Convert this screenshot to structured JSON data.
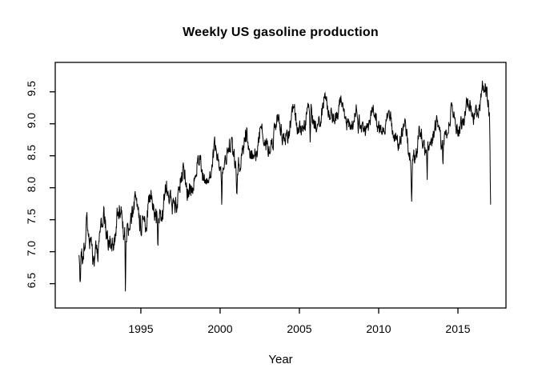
{
  "chart_data": {
    "type": "line",
    "title": "Weekly US gasoline production",
    "xlabel": "Year",
    "ylabel": "",
    "series_name": "weekly-us-gasoline-production",
    "line_color": "#000000",
    "background_color": "#ffffff",
    "grid": false,
    "legend": "none",
    "x_start": 1991.1,
    "x_end": 2017.06,
    "points_per_year": 52,
    "xlim": [
      1989.6,
      2018.03
    ],
    "ylim": [
      6.12,
      9.96
    ],
    "x_ticks": [
      1995,
      2000,
      2005,
      2010,
      2015
    ],
    "x_tick_labels": [
      "1995",
      "2000",
      "2005",
      "2010",
      "2015"
    ],
    "y_ticks": [
      6.5,
      7.0,
      7.5,
      8.0,
      8.5,
      9.0,
      9.5
    ],
    "y_tick_labels": [
      "6.5",
      "7.0",
      "7.5",
      "8.0",
      "8.5",
      "9.0",
      "9.5"
    ],
    "trend_anchors": [
      [
        1991.1,
        7.05
      ],
      [
        1992,
        7.12
      ],
      [
        1993,
        7.3
      ],
      [
        1994,
        7.45
      ],
      [
        1995,
        7.55
      ],
      [
        1996,
        7.65
      ],
      [
        1997,
        7.85
      ],
      [
        1998,
        8.1
      ],
      [
        1999,
        8.25
      ],
      [
        2000,
        8.4
      ],
      [
        2001,
        8.5
      ],
      [
        2002,
        8.65
      ],
      [
        2003,
        8.75
      ],
      [
        2004,
        8.9
      ],
      [
        2005,
        9.05
      ],
      [
        2006,
        9.1
      ],
      [
        2007,
        9.25
      ],
      [
        2008,
        9.1
      ],
      [
        2009,
        9.0
      ],
      [
        2010,
        9.05
      ],
      [
        2011,
        8.95
      ],
      [
        2012,
        8.6
      ],
      [
        2013,
        8.7
      ],
      [
        2014,
        8.85
      ],
      [
        2015,
        9.05
      ],
      [
        2016,
        9.25
      ],
      [
        2016.9,
        9.45
      ],
      [
        2017.06,
        9.0
      ]
    ],
    "volatility_anchors": [
      [
        1991,
        1.3
      ],
      [
        1997,
        1.15
      ],
      [
        2003,
        1.0
      ],
      [
        2008,
        0.85
      ],
      [
        2010,
        0.8
      ],
      [
        2012,
        1.0
      ],
      [
        2015,
        0.95
      ],
      [
        2017.1,
        1.0
      ]
    ],
    "seasonal": {
      "a1": 0.19,
      "a2": 0.05,
      "peak": 0.63
    },
    "noise": {
      "amp": 0.12,
      "phi": 0.45,
      "seed": 20
    },
    "anomalies": [
      {
        "x": 1991.17,
        "dy": -0.35,
        "width": 0.05
      },
      {
        "x": 1994.03,
        "dy": -0.95,
        "width": 0.035
      },
      {
        "x": 1996.07,
        "dy": -0.65,
        "width": 0.04
      },
      {
        "x": 2000.1,
        "dy": -0.4,
        "width": 0.04
      },
      {
        "x": 2001.05,
        "dy": -0.45,
        "width": 0.04
      },
      {
        "x": 2005.68,
        "dy": -0.5,
        "width": 0.05
      },
      {
        "x": 2008.72,
        "dy": -0.4,
        "width": 0.05
      },
      {
        "x": 2012.08,
        "dy": -0.6,
        "width": 0.05
      },
      {
        "x": 2013.06,
        "dy": -0.5,
        "width": 0.04
      },
      {
        "x": 2014.05,
        "dy": -0.4,
        "width": 0.04
      },
      {
        "x": 2017.06,
        "dy": -1.0,
        "width": 0.06
      }
    ]
  }
}
